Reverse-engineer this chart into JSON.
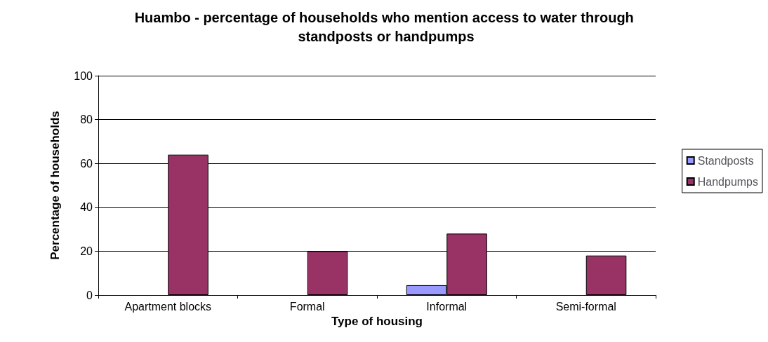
{
  "chart_data": {
    "type": "bar",
    "title": "Huambo - percentage of households who mention access to water through standposts or handpumps",
    "xlabel": "Type of housing",
    "ylabel": "Percentage of households",
    "categories": [
      "Apartment blocks",
      "Formal",
      "Informal",
      "Semi-formal"
    ],
    "series": [
      {
        "name": "Standposts",
        "color": "#9999ff",
        "values": [
          null,
          null,
          4.5,
          null
        ]
      },
      {
        "name": "Handpumps",
        "color": "#993366",
        "values": [
          64,
          20,
          28,
          18
        ]
      }
    ],
    "ylim": [
      0,
      100
    ],
    "yticks": [
      0,
      20,
      40,
      60,
      80,
      100
    ],
    "grid": "y",
    "legend": "right"
  }
}
